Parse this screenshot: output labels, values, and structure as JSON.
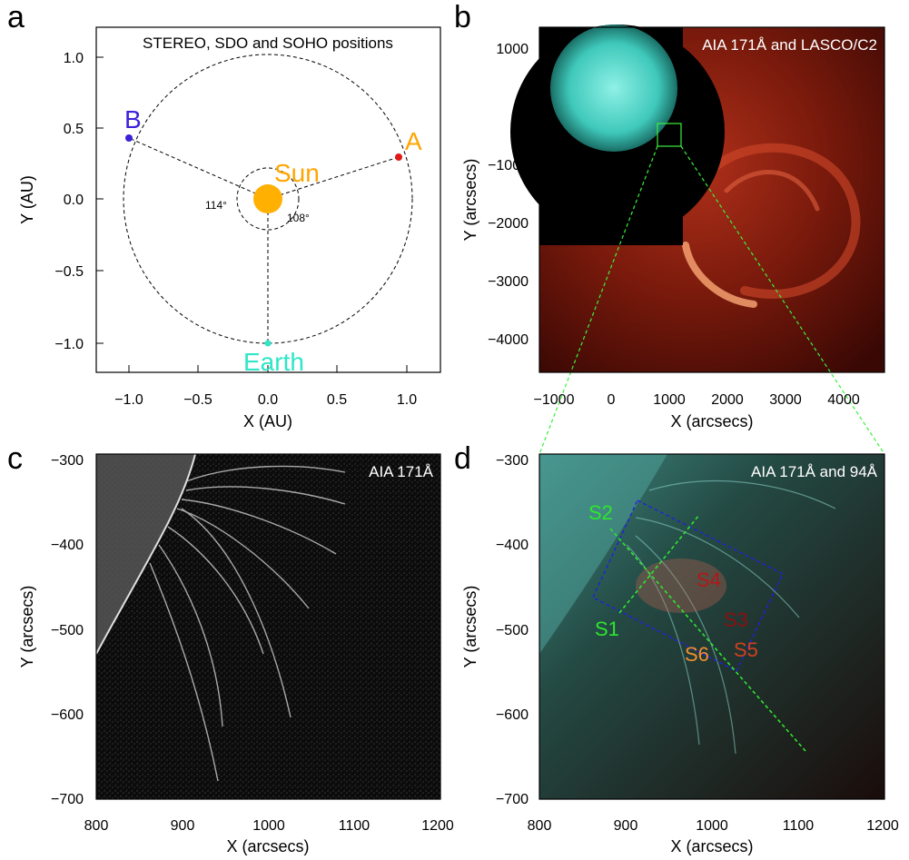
{
  "figure": {
    "panels": [
      {
        "id": "a",
        "letter": "a",
        "title": "STEREO, SDO and SOHO positions",
        "xlabel": "X (AU)",
        "ylabel": "Y (AU)",
        "xticks": [
          "−1.0",
          "−0.5",
          "0.0",
          "0.5",
          "1.0"
        ],
        "yticks": [
          "1.0",
          "0.5",
          "0.0",
          "−0.5",
          "−1.0"
        ],
        "labels": {
          "B": "B",
          "A": "A",
          "Sun": "Sun",
          "Earth": "Earth",
          "angle_left": "114°",
          "angle_right": "108°"
        },
        "colors": {
          "B": "#3b22d9",
          "A": "#ffa500",
          "A_dot": "#e01818",
          "Sun": "#ffb000",
          "Earth": "#2ee6c8"
        }
      },
      {
        "id": "b",
        "letter": "b",
        "title": "AIA 171Å and LASCO/C2",
        "xlabel": "X (arcsecs)",
        "ylabel": "Y (arcsecs)",
        "xticks": [
          "−1000",
          "0",
          "1000",
          "2000",
          "3000",
          "4000"
        ],
        "yticks": [
          "1000",
          "0",
          "−1000",
          "−2000",
          "−3000",
          "−4000"
        ]
      },
      {
        "id": "c",
        "letter": "c",
        "title": "AIA 171Å",
        "xlabel": "X (arcsecs)",
        "ylabel": "Y (arcsecs)",
        "xticks": [
          "800",
          "900",
          "1000",
          "1100",
          "1200"
        ],
        "yticks": [
          "−300",
          "−400",
          "−500",
          "−600",
          "−700"
        ]
      },
      {
        "id": "d",
        "letter": "d",
        "title": "AIA 171Å and 94Å",
        "xlabel": "X (arcsecs)",
        "ylabel": "Y (arcsecs)",
        "xticks": [
          "800",
          "900",
          "1000",
          "1100",
          "1200"
        ],
        "yticks": [
          "−300",
          "−400",
          "−500",
          "−600",
          "−700"
        ],
        "slits": [
          {
            "label": "S1",
            "color": "#2ee62e"
          },
          {
            "label": "S2",
            "color": "#2ee62e"
          },
          {
            "label": "S3",
            "color": "#8b1010"
          },
          {
            "label": "S4",
            "color": "#b01818"
          },
          {
            "label": "S5",
            "color": "#d04020"
          },
          {
            "label": "S6",
            "color": "#f09030"
          }
        ]
      }
    ]
  }
}
